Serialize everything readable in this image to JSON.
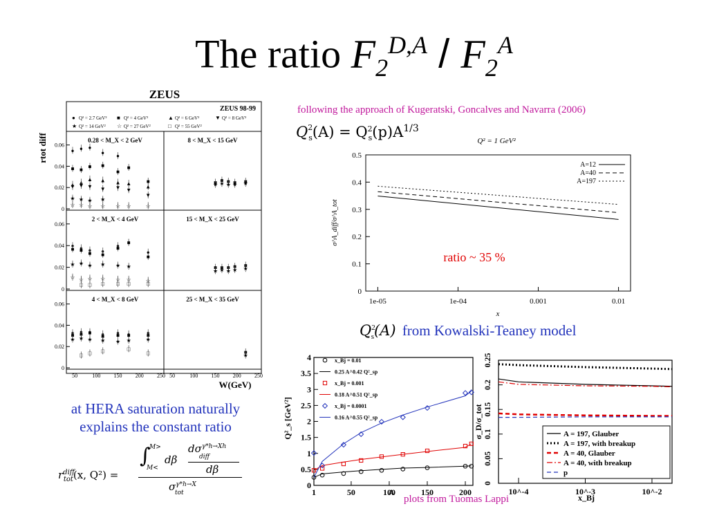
{
  "slide": {
    "title_main": "The ratio ",
    "title_F": "F",
    "title_sub": "2",
    "title_sup": "D,A",
    "title_slash": " / ",
    "title_F2": "F",
    "title_sub2": "2",
    "title_sup2": "A"
  },
  "texts": {
    "kugeratski": "following the approach of Kugeratski, Goncalves and Navarra (2006)",
    "qs_formula_lhs": "Q",
    "qs_formula_text": "(A) = Q",
    "qs_formula_rest": "(p)A",
    "qs_formula_exp": "1/3",
    "kowalski_Q": "Q",
    "kowalski_arg": "(A)",
    "kowalski_text": "from Kowalski-Teaney model",
    "hera_line1": "at HERA saturation naturally",
    "hera_line2": "explains the constant ratio",
    "lappi": "plots from Tuomas Lappi",
    "formula_lhs": "r",
    "formula_lhs_sup": "diff",
    "formula_lhs_sub": "tot",
    "formula_lhs_args": "(x, Q²) =",
    "formula_num_lim_top": "M>",
    "formula_num_lim_bot": "M<",
    "formula_num_dbeta": "dβ",
    "formula_frac_num": "dσ",
    "formula_frac_num_sup": "γ*h→Xh",
    "formula_frac_num_sub": "diff",
    "formula_frac_den": "dβ",
    "formula_den": "σ",
    "formula_den_sup": "γ*h→X",
    "formula_den_sub": "tot"
  },
  "zeus_panel": {
    "header": "ZEUS",
    "tag": "ZEUS 98-99",
    "ylabel_main": "r",
    "ylabel_sub": "tot",
    "ylabel_sup": "diff",
    "xlabel": "W(GeV)",
    "legend": [
      "Q² = 2.7 GeV²",
      "Q² = 4 GeV²",
      "Q² = 6 GeV²",
      "Q² = 8 GeV²",
      "Q² = 14 GeV²",
      "Q² = 27 GeV²",
      "Q² = 55 GeV²"
    ],
    "legend_markers": [
      "●",
      "■",
      "▲",
      "▼",
      "★",
      "☆",
      "□"
    ],
    "cell_labels": [
      "0.28 < M_X < 2 GeV",
      "8 < M_X < 15 GeV",
      "2 < M_X < 4 GeV",
      "15 < M_X < 25 GeV",
      "4 < M_X < 8 GeV",
      "25 < M_X < 35 GeV"
    ],
    "yticks": [
      "0.06",
      "0.04",
      "0.02",
      "0"
    ],
    "xticks_left": [
      "50",
      "100",
      "150",
      "200",
      "250"
    ],
    "xticks_right": [
      "50",
      "100",
      "150",
      "200",
      "250"
    ]
  },
  "chart_data": [
    {
      "type": "scatter",
      "title": "ZEUS",
      "xlabel": "W(GeV)",
      "ylabel": "r_tot^diff",
      "xlim": [
        37,
        250
      ],
      "ylim": [
        0,
        0.065
      ],
      "panels": [
        {
          "label": "0.28 < M_X < 2 GeV",
          "series": [
            {
              "name": "Q² = 2.7 GeV²",
              "x": [
                45,
                65,
                85,
                115,
                150
              ],
              "y": [
                0.055,
                0.057,
                0.058,
                0.053,
                0.05
              ]
            },
            {
              "name": "Q² = 4 GeV²",
              "x": [
                45,
                65,
                85,
                115,
                150,
                175,
                220
              ],
              "y": [
                0.038,
                0.037,
                0.04,
                0.041,
                0.035,
                0.039,
                0.026
              ]
            },
            {
              "name": "Q² = 6 GeV²",
              "x": [
                45,
                65,
                85,
                115,
                150,
                175,
                220
              ],
              "y": [
                0.023,
                0.025,
                0.028,
                0.027,
                0.025,
                0.024,
                0.021
              ]
            },
            {
              "name": "Q² = 8 GeV²",
              "x": [
                45,
                65,
                85,
                115,
                150,
                175,
                220
              ],
              "y": [
                0.021,
                0.022,
                0.021,
                0.019,
                0.02,
                0.018,
                0.013
              ]
            },
            {
              "name": "Q² = 14 GeV²",
              "x": [
                45,
                65,
                85,
                115
              ],
              "y": [
                0.01,
                0.009,
                0.008,
                0.009
              ]
            },
            {
              "name": "Q² = 27 GeV²",
              "x": [
                45,
                65,
                85,
                115,
                150,
                175,
                220
              ],
              "y": [
                0.004,
                0.004,
                0.003,
                0.003,
                0.003,
                0.003,
                0.003
              ]
            }
          ]
        },
        {
          "label": "8 < M_X < 15 GeV",
          "series": [
            {
              "name": "Q² = 4 GeV²",
              "x": [
                150,
                165,
                180,
                195,
                220
              ],
              "y": [
                0.025,
                0.027,
                0.026,
                0.025,
                0.026
              ]
            },
            {
              "name": "Q² = 14 GeV²",
              "x": [
                150,
                165,
                180,
                195,
                220
              ],
              "y": [
                0.023,
                0.024,
                0.023,
                0.023,
                0.024
              ]
            }
          ]
        },
        {
          "label": "2 < M_X < 4 GeV",
          "series": [
            {
              "name": "Q² = 2.7 GeV²",
              "x": [
                45,
                65,
                85,
                115,
                150,
                175,
                220
              ],
              "y": [
                0.04,
                0.038,
                0.036,
                0.035,
                0.04,
                0.043,
                0.034
              ]
            },
            {
              "name": "Q² = 4 GeV²",
              "x": [
                45,
                65,
                85,
                115,
                150,
                175,
                220
              ],
              "y": [
                0.037,
                0.036,
                0.033,
                0.032,
                0.038,
                0.043,
                0.03
              ]
            },
            {
              "name": "Q² = 14 GeV²",
              "x": [
                45,
                65,
                85,
                115,
                150,
                175
              ],
              "y": [
                0.023,
                0.024,
                0.022,
                0.023,
                0.022,
                0.021
              ]
            },
            {
              "name": "Q² = 27 GeV²",
              "x": [
                45,
                65,
                85,
                115,
                150,
                175,
                220
              ],
              "y": [
                0.011,
                0.009,
                0.01,
                0.01,
                0.009,
                0.009,
                0.008
              ]
            },
            {
              "name": "Q² = 55 GeV²",
              "x": [
                65,
                85,
                115,
                150,
                175,
                220
              ],
              "y": [
                0.004,
                0.004,
                0.005,
                0.005,
                0.005,
                0.005
              ]
            }
          ]
        },
        {
          "label": "15 < M_X < 25 GeV",
          "series": [
            {
              "name": "Q² = 4 GeV²",
              "x": [
                150,
                165,
                180,
                195,
                220
              ],
              "y": [
                0.02,
                0.02,
                0.02,
                0.021,
                0.022
              ]
            },
            {
              "name": "Q² = 14 GeV²",
              "x": [
                150,
                165,
                180,
                195,
                220
              ],
              "y": [
                0.017,
                0.018,
                0.017,
                0.018,
                0.019
              ]
            }
          ]
        },
        {
          "label": "4 < M_X < 8 GeV",
          "series": [
            {
              "name": "Q² = 2.7 GeV²",
              "x": [
                45,
                65,
                85,
                115,
                150,
                175,
                220
              ],
              "y": [
                0.033,
                0.034,
                0.034,
                0.032,
                0.033,
                0.032,
                0.033
              ]
            },
            {
              "name": "Q² = 4 GeV²",
              "x": [
                45,
                65,
                85,
                115,
                150,
                175,
                220
              ],
              "y": [
                0.031,
                0.032,
                0.033,
                0.03,
                0.031,
                0.031,
                0.031
              ]
            },
            {
              "name": "Q² = 14 GeV²",
              "x": [
                45,
                65,
                85,
                115,
                150,
                175,
                220
              ],
              "y": [
                0.027,
                0.028,
                0.027,
                0.026,
                0.025,
                0.026,
                0.027
              ]
            },
            {
              "name": "Q² = 55 GeV²",
              "x": [
                65,
                85,
                115,
                175,
                220
              ],
              "y": [
                0.012,
                0.014,
                0.016,
                0.018,
                0.014
              ]
            }
          ]
        },
        {
          "label": "25 < M_X < 35 GeV",
          "series": [
            {
              "name": "Q² = 4 GeV²",
              "x": [
                220
              ],
              "y": [
                0.015
              ]
            },
            {
              "name": "Q² = 14 GeV²",
              "x": [
                220
              ],
              "y": [
                0.012
              ]
            }
          ]
        }
      ]
    },
    {
      "type": "line",
      "title": "Q² = 1 GeV²",
      "xlabel": "x",
      "ylabel": "σ^A_diff/σ^A_tot",
      "xscale": "log",
      "xlim": [
        1e-05,
        0.01
      ],
      "ylim": [
        0,
        0.5
      ],
      "xticklabels": [
        "1e-05",
        "1e-04",
        "0.001",
        "0.01"
      ],
      "yticklabels": [
        "0",
        "0.1",
        "0.2",
        "0.3",
        "0.4",
        "0.5"
      ],
      "annotation": "ratio ~ 35 %",
      "legend": "top-right",
      "x": [
        1e-05,
        0.01
      ],
      "series": [
        {
          "name": "A=12",
          "y": [
            0.349,
            0.263
          ],
          "style": "solid"
        },
        {
          "name": "A=40",
          "y": [
            0.365,
            0.288
          ],
          "style": "dashed"
        },
        {
          "name": "A=197",
          "y": [
            0.385,
            0.318
          ],
          "style": "dotted"
        }
      ]
    },
    {
      "type": "scatter",
      "xlabel": "A",
      "ylabel": "Q²_s [GeV²]",
      "xlim": [
        1,
        210
      ],
      "ylim": [
        0,
        4
      ],
      "xticklabels": [
        "1",
        "50",
        "100",
        "150",
        "200"
      ],
      "yticklabels": [
        "0",
        "0.5",
        "1",
        "1.5",
        "2",
        "2.5",
        "3",
        "3.5",
        "4"
      ],
      "legend": "top-left",
      "series": [
        {
          "name": "x_Bj = 0.01",
          "x": [
            1,
            12,
            40,
            63,
            90,
            118,
            150,
            200,
            208
          ],
          "y": [
            0.25,
            0.32,
            0.37,
            0.43,
            0.47,
            0.51,
            0.55,
            0.6,
            0.6
          ],
          "marker": "circle",
          "color": "#000000"
        },
        {
          "name": "0.25 A^0.42 Q²_sp",
          "x": [
            1,
            12,
            40,
            63,
            90,
            118,
            150,
            200,
            208
          ],
          "y": [
            0.25,
            0.36,
            0.42,
            0.46,
            0.5,
            0.54,
            0.56,
            0.6,
            0.61
          ],
          "style": "line",
          "color": "#000000"
        },
        {
          "name": "x_Bj = 0.001",
          "x": [
            1,
            12,
            40,
            63,
            90,
            118,
            150,
            200,
            208
          ],
          "y": [
            0.47,
            0.53,
            0.67,
            0.78,
            0.9,
            0.97,
            1.08,
            1.23,
            1.3
          ],
          "marker": "square",
          "color": "#e00000"
        },
        {
          "name": "0.18 A^0.51 Q²_sp",
          "x": [
            1,
            12,
            40,
            63,
            90,
            118,
            150,
            200,
            208
          ],
          "y": [
            0.47,
            0.62,
            0.73,
            0.81,
            0.89,
            0.97,
            1.06,
            1.19,
            1.3
          ],
          "style": "line",
          "color": "#e00000"
        },
        {
          "name": "x_Bj = 0.0001",
          "x": [
            1,
            12,
            40,
            63,
            90,
            118,
            150,
            200,
            208
          ],
          "y": [
            1.01,
            0.62,
            1.27,
            1.6,
            1.99,
            2.13,
            2.42,
            2.89,
            2.91
          ],
          "marker": "diamond",
          "color": "#2233bb"
        },
        {
          "name": "0.16 A^0.55 Q²_sp",
          "x": [
            1,
            12,
            40,
            63,
            90,
            118,
            150,
            200,
            208
          ],
          "y": [
            0.25,
            0.75,
            1.3,
            1.65,
            1.95,
            2.2,
            2.45,
            2.8,
            2.95
          ],
          "style": "line",
          "color": "#2233bb"
        }
      ]
    },
    {
      "type": "line",
      "xlabel": "x_Bj",
      "ylabel": "σ_D/σ_tot",
      "xscale": "log",
      "xlim": [
        5e-05,
        0.02
      ],
      "ylim": [
        0,
        0.25
      ],
      "xticklabels": [
        "10^-4",
        "10^-3",
        "10^-2"
      ],
      "yticklabels": [
        "0",
        "0.05",
        "0.1",
        "0.15",
        "0.2",
        "0.25"
      ],
      "legend": "bottom-right",
      "x": [
        5e-05,
        0.0001,
        0.001,
        0.01,
        0.02
      ],
      "series": [
        {
          "name": "A = 197, Glauber",
          "y": [
            0.212,
            0.206,
            0.201,
            0.198,
            0.197
          ],
          "style": "solid",
          "color": "#000000"
        },
        {
          "name": "A = 197, with breakup",
          "y": [
            0.242,
            0.24,
            0.236,
            0.233,
            0.232
          ],
          "style": "dotted",
          "color": "#000000"
        },
        {
          "name": "A = 40, Glauber",
          "y": [
            0.142,
            0.14,
            0.138,
            0.137,
            0.137
          ],
          "style": "dashed",
          "color": "#e00000"
        },
        {
          "name": "A = 40, with breakup",
          "y": [
            0.206,
            0.201,
            0.198,
            0.197,
            0.196
          ],
          "style": "dashdot",
          "color": "#e00000"
        },
        {
          "name": "p",
          "y": [
            0.134,
            0.134,
            0.135,
            0.135,
            0.135
          ],
          "style": "dashed",
          "color": "#2233bb"
        }
      ]
    }
  ]
}
